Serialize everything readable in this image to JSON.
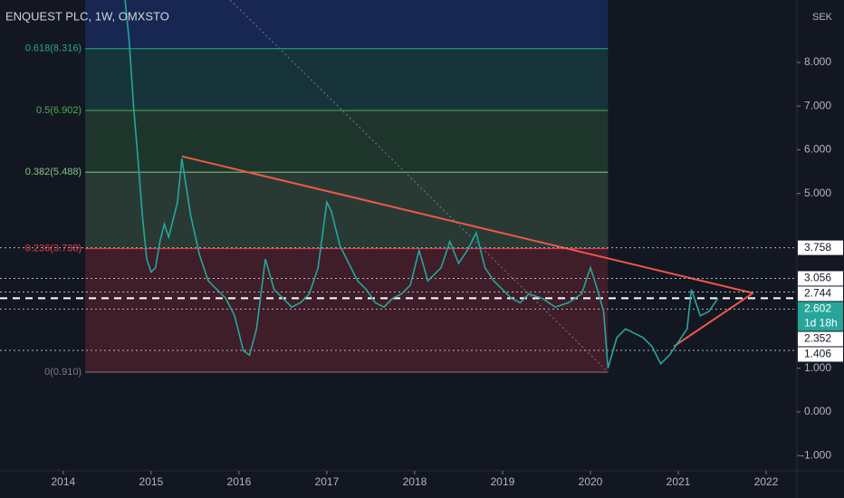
{
  "chart_data": {
    "type": "line",
    "title": "ENQUEST PLC, 1W, OMXSTO",
    "currency": "SEK",
    "x": [
      2014.7,
      2014.75,
      2014.8,
      2014.85,
      2014.9,
      2014.95,
      2015.0,
      2015.05,
      2015.1,
      2015.15,
      2015.2,
      2015.3,
      2015.35,
      2015.45,
      2015.55,
      2015.65,
      2015.75,
      2015.85,
      2015.95,
      2016.05,
      2016.12,
      2016.2,
      2016.3,
      2016.4,
      2016.5,
      2016.6,
      2016.7,
      2016.8,
      2016.9,
      2017.0,
      2017.05,
      2017.15,
      2017.25,
      2017.35,
      2017.45,
      2017.55,
      2017.65,
      2017.75,
      2017.85,
      2017.95,
      2018.05,
      2018.15,
      2018.3,
      2018.4,
      2018.5,
      2018.6,
      2018.7,
      2018.8,
      2018.9,
      2019.0,
      2019.1,
      2019.2,
      2019.3,
      2019.45,
      2019.6,
      2019.75,
      2019.9,
      2020.0,
      2020.08,
      2020.15,
      2020.2,
      2020.3,
      2020.4,
      2020.5,
      2020.6,
      2020.7,
      2020.8,
      2020.9,
      2021.0,
      2021.1,
      2021.15,
      2021.25,
      2021.35,
      2021.45
    ],
    "values": [
      9.5,
      8.5,
      7.0,
      5.8,
      4.5,
      3.5,
      3.2,
      3.3,
      3.9,
      4.3,
      4.0,
      4.8,
      5.8,
      4.5,
      3.6,
      3.0,
      2.8,
      2.6,
      2.2,
      1.4,
      1.3,
      1.9,
      3.5,
      2.8,
      2.6,
      2.4,
      2.5,
      2.7,
      3.3,
      4.8,
      4.6,
      3.8,
      3.4,
      3.0,
      2.8,
      2.5,
      2.4,
      2.6,
      2.7,
      2.9,
      3.7,
      3.0,
      3.3,
      3.9,
      3.4,
      3.7,
      4.1,
      3.3,
      3.0,
      2.8,
      2.6,
      2.5,
      2.7,
      2.6,
      2.4,
      2.5,
      2.7,
      3.3,
      2.8,
      2.3,
      1.0,
      1.7,
      1.9,
      1.8,
      1.7,
      1.5,
      1.1,
      1.3,
      1.6,
      1.9,
      2.8,
      2.2,
      2.3,
      2.6
    ],
    "color": "#26a69a",
    "xlim": [
      2013.28,
      2022.35
    ],
    "ylim": [
      -1.35,
      9.43
    ],
    "xticks": [
      2014,
      2015,
      2016,
      2017,
      2018,
      2019,
      2020,
      2021,
      2022
    ],
    "yticks": [
      {
        "value": 8,
        "label": "8.000"
      },
      {
        "value": 7,
        "label": "7.000"
      },
      {
        "value": 6,
        "label": "6.000"
      },
      {
        "value": 5,
        "label": "5.000"
      },
      {
        "value": 1,
        "label": "1.000"
      },
      {
        "value": 0,
        "label": "0.000"
      },
      {
        "value": -1,
        "label": "-1.000"
      }
    ],
    "fib_range": [
      2014.25,
      2020.2
    ],
    "fib_levels": [
      {
        "label": "0.618(8.316)",
        "value": 8.316,
        "color": "#26a69a"
      },
      {
        "label": "0.5(6.902)",
        "value": 6.902,
        "color": "#4caf50"
      },
      {
        "label": "0.382(5.488)",
        "value": 5.488,
        "color": "#81c784"
      },
      {
        "label": "0.236(3.738)",
        "value": 3.738,
        "color": "#f23645"
      },
      {
        "label": "0(0.910)",
        "value": 0.91,
        "color": "#787b86"
      }
    ],
    "price_lines": [
      3.758,
      3.056,
      2.744,
      2.602,
      2.352,
      1.406
    ],
    "last_price_countdown": "1d 18h",
    "trendlines": [
      {
        "x": [
          2015.35,
          2021.85
        ],
        "y": [
          5.85,
          2.72
        ]
      },
      {
        "x": [
          2020.95,
          2021.85
        ],
        "y": [
          1.5,
          2.72
        ]
      },
      {
        "x": [
          2015.9,
          2020.2
        ],
        "y": [
          9.43,
          0.91
        ]
      }
    ]
  }
}
